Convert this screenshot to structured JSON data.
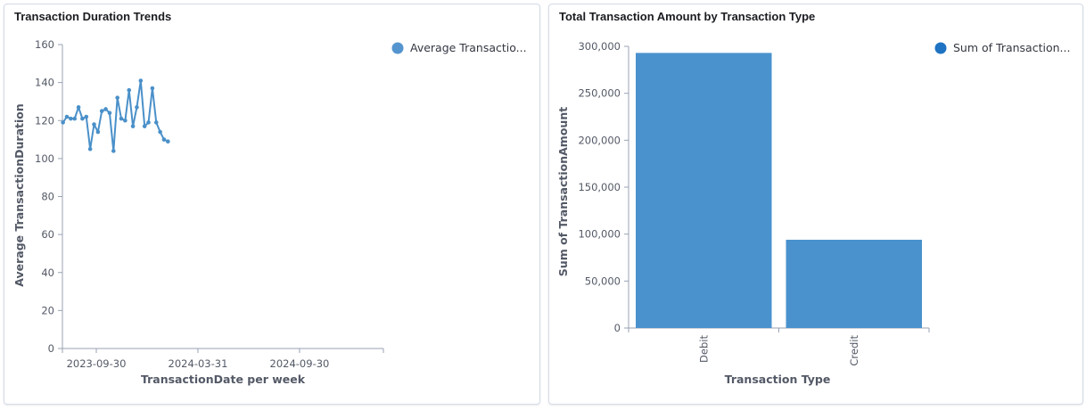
{
  "colors": {
    "line": "#4a90c9",
    "bar": "#4a92cd",
    "legend_dot_left": "#5595cf",
    "legend_dot_right": "#1e73c2",
    "axis": "#98a2b3",
    "grid": "#eef1f5"
  },
  "left_panel": {
    "title": "Transaction Duration Trends"
  },
  "right_panel": {
    "title": "Total Transaction Amount by Transaction Type"
  },
  "chart_data": [
    {
      "type": "line",
      "title": "Transaction Duration Trends",
      "xlabel": "TransactionDate per week",
      "ylabel": "Average TransactionDuration",
      "x_ticks": [
        "2023-09-30",
        "2024-03-31",
        "2024-09-30"
      ],
      "y_ticks": [
        "0",
        "20",
        "40",
        "60",
        "80",
        "100",
        "120",
        "140",
        "160"
      ],
      "ylim": [
        0,
        160
      ],
      "xlim": [
        "2023-07-31",
        "2025-02-28"
      ],
      "legend": {
        "position": "top-right",
        "entries": [
          "Average Transactio..."
        ]
      },
      "series": [
        {
          "name": "Average Transactio...",
          "x": [
            "2023-08-01",
            "2023-08-08",
            "2023-08-15",
            "2023-08-22",
            "2023-08-29",
            "2023-09-05",
            "2023-09-12",
            "2023-09-19",
            "2023-09-26",
            "2023-10-03",
            "2023-10-10",
            "2023-10-17",
            "2023-10-24",
            "2023-10-31",
            "2023-11-07",
            "2023-11-14",
            "2023-11-21",
            "2023-11-28",
            "2023-12-05",
            "2023-12-12",
            "2023-12-19",
            "2023-12-26",
            "2024-01-02",
            "2024-01-09",
            "2024-01-16",
            "2024-01-23",
            "2024-01-30",
            "2024-02-06"
          ],
          "values": [
            119,
            122,
            121,
            121,
            127,
            121,
            122,
            105,
            118,
            114,
            125,
            126,
            124,
            104,
            132,
            121,
            120,
            136,
            117,
            127,
            141,
            117,
            119,
            137,
            119,
            114,
            110,
            109
          ]
        }
      ]
    },
    {
      "type": "bar",
      "title": "Total Transaction Amount by Transaction Type",
      "xlabel": "Transaction Type",
      "ylabel": "Sum of TransactionAmount",
      "categories": [
        "Debit",
        "Credit"
      ],
      "y_ticks": [
        "0",
        "50,000",
        "100,000",
        "150,000",
        "200,000",
        "250,000",
        "300,000"
      ],
      "ylim": [
        0,
        300000
      ],
      "legend": {
        "position": "top-right",
        "entries": [
          "Sum of Transaction..."
        ]
      },
      "series": [
        {
          "name": "Sum of Transaction...",
          "values": [
            293000,
            94000
          ]
        }
      ]
    }
  ]
}
